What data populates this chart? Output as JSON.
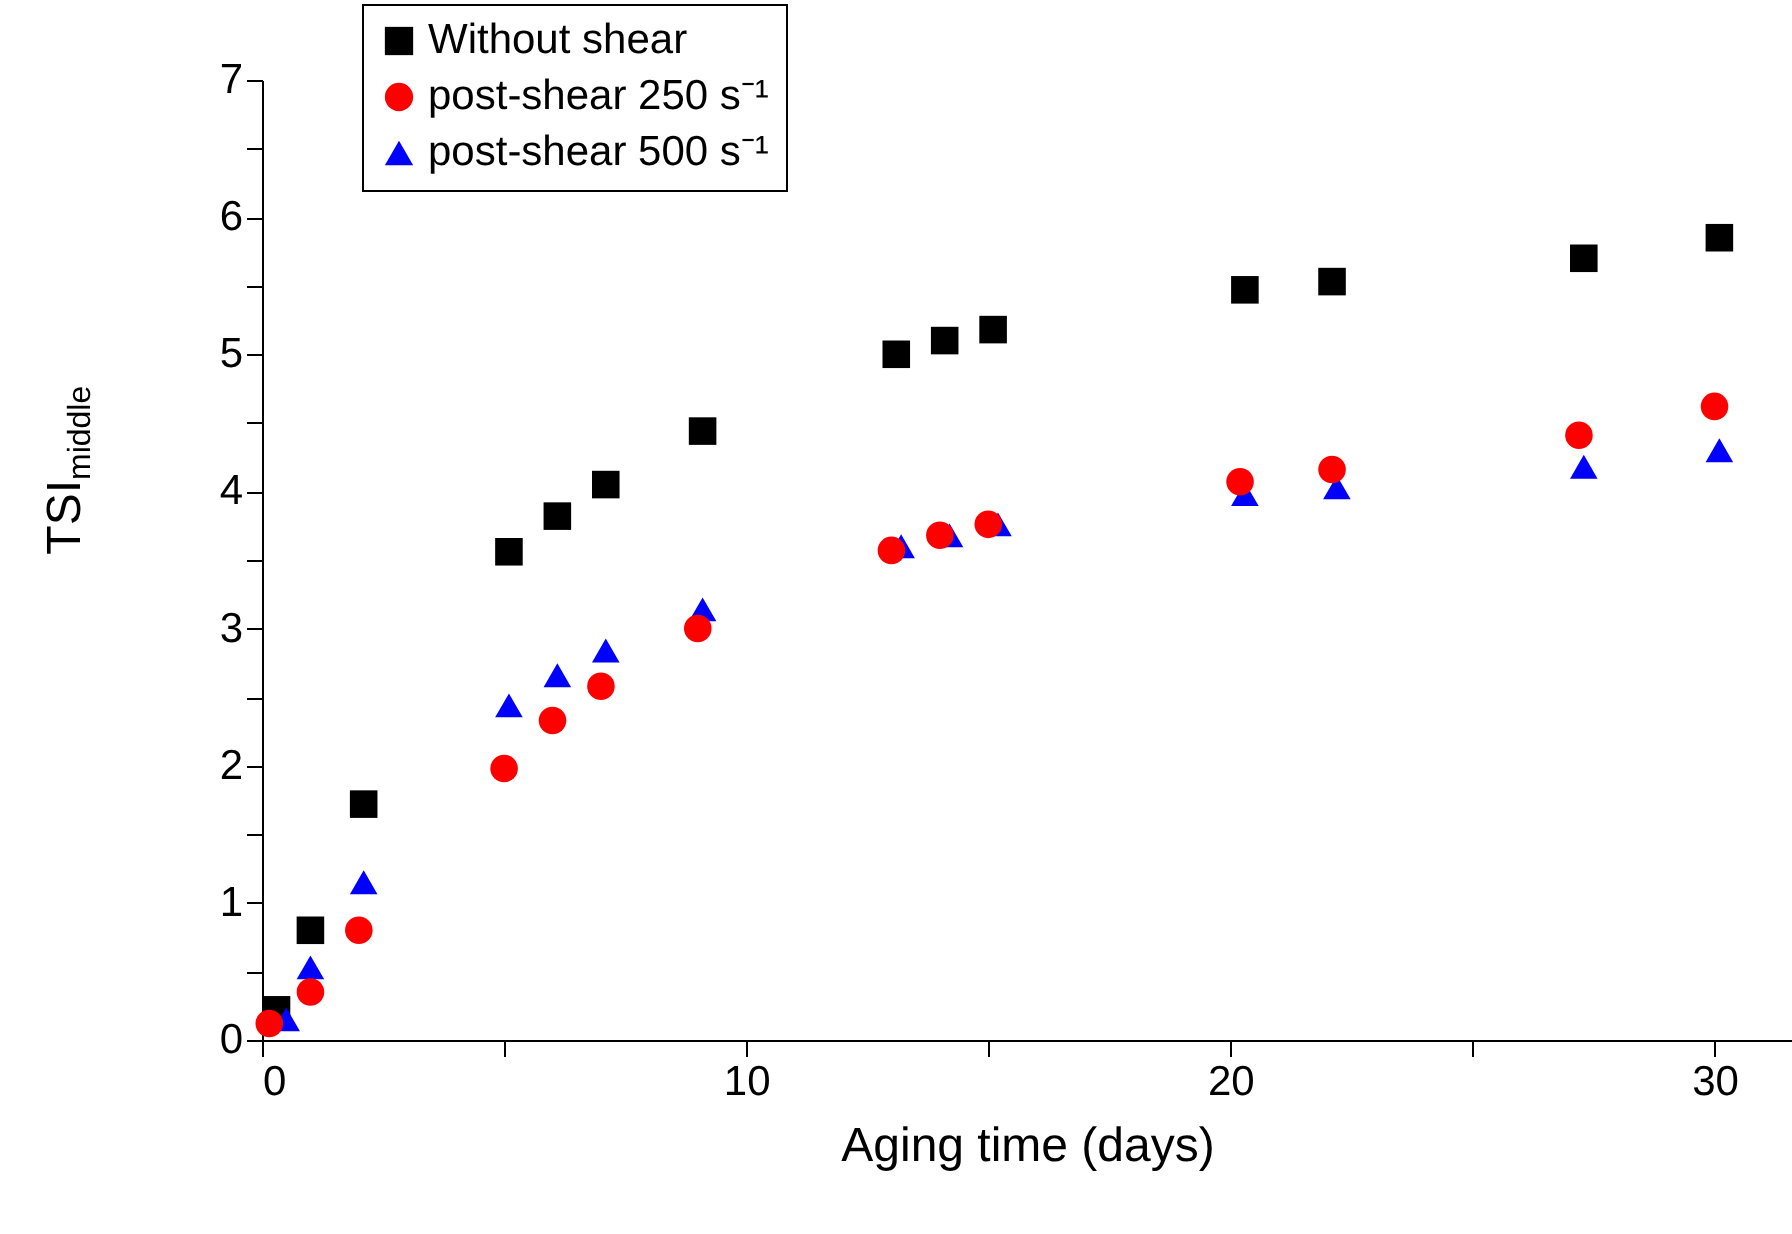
{
  "chart_data": {
    "type": "scatter",
    "xlabel": "Aging time (days)",
    "ylabel": "TSI$_{middle}$",
    "xlim": [
      0,
      31.6
    ],
    "ylim": [
      0,
      7
    ],
    "xticks": [
      0,
      {
        "value": 5,
        "label": null
      },
      10,
      {
        "value": 15,
        "label": null
      },
      20,
      {
        "value": 25,
        "label": null
      },
      30
    ],
    "yticks": [
      0,
      {
        "value": 0.5,
        "label": null
      },
      1,
      {
        "value": 1.5,
        "label": null
      },
      2,
      {
        "value": 2.5,
        "label": null
      },
      3,
      {
        "value": 3.5,
        "label": null
      },
      4,
      {
        "value": 4.5,
        "label": null
      },
      5,
      {
        "value": 5.5,
        "label": null
      },
      6,
      {
        "value": 6.5,
        "label": null
      },
      7
    ],
    "grid": false,
    "legend": "top left",
    "series": [
      {
        "name": "Without shear",
        "color": "#000000",
        "marker": "square",
        "x": [
          0.3,
          1,
          2.1,
          5.1,
          6.1,
          7.1,
          9.1,
          13.1,
          14.1,
          15.1,
          20.3,
          22.1,
          27.3,
          30.1
        ],
        "values": [
          0.22,
          0.8,
          1.72,
          3.56,
          3.82,
          4.05,
          4.44,
          5.0,
          5.1,
          5.18,
          5.47,
          5.53,
          5.7,
          5.85
        ]
      },
      {
        "name": "post-shear 250 s⁻¹",
        "color": "#ff0000",
        "marker": "circle",
        "x": [
          0.15,
          1,
          2,
          5,
          6,
          7,
          9,
          13,
          14,
          15,
          20.2,
          22.1,
          27.2,
          30
        ],
        "values": [
          0.12,
          0.35,
          0.8,
          1.98,
          2.33,
          2.58,
          3.0,
          3.57,
          3.68,
          3.76,
          4.07,
          4.16,
          4.41,
          4.62
        ]
      },
      {
        "name": "post-shear 500 s⁻¹",
        "color": "#0000ff",
        "marker": "triangle",
        "x": [
          0.5,
          1,
          2.1,
          5.1,
          6.1,
          7.1,
          9.1,
          13.2,
          14.2,
          15.2,
          20.3,
          22.2,
          27.3,
          30.1
        ],
        "values": [
          0.15,
          0.53,
          1.15,
          2.44,
          2.66,
          2.84,
          3.14,
          3.6,
          3.68,
          3.76,
          3.98,
          4.03,
          4.18,
          4.3
        ]
      }
    ]
  }
}
